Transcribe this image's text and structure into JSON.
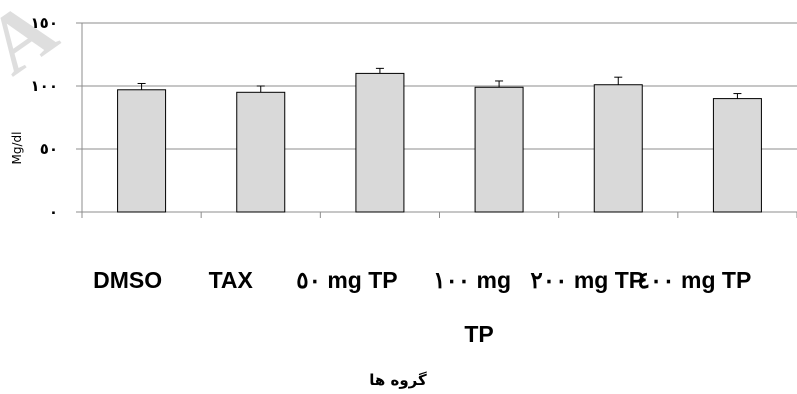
{
  "watermark": "A",
  "chart_data": {
    "type": "bar",
    "categories": [
      "DMSO",
      "TAX",
      "٥٠ mg TP",
      "١٠٠ mg TP",
      "٢٠٠ mg TP",
      "٤٠٠ mg TP"
    ],
    "values": [
      97,
      95,
      110,
      99,
      101,
      90
    ],
    "errors": [
      5,
      5,
      4,
      5,
      6,
      4
    ],
    "ylim": [
      0,
      150
    ],
    "yticks": [
      0,
      50,
      100,
      150
    ],
    "ytick_labels": [
      "٠",
      "٥٠",
      "١٠٠",
      "١٥٠"
    ],
    "ylabel": "Mg/dl",
    "xlabel": "گروه ها",
    "grid": true,
    "bar_color": "#d9d9d9"
  }
}
